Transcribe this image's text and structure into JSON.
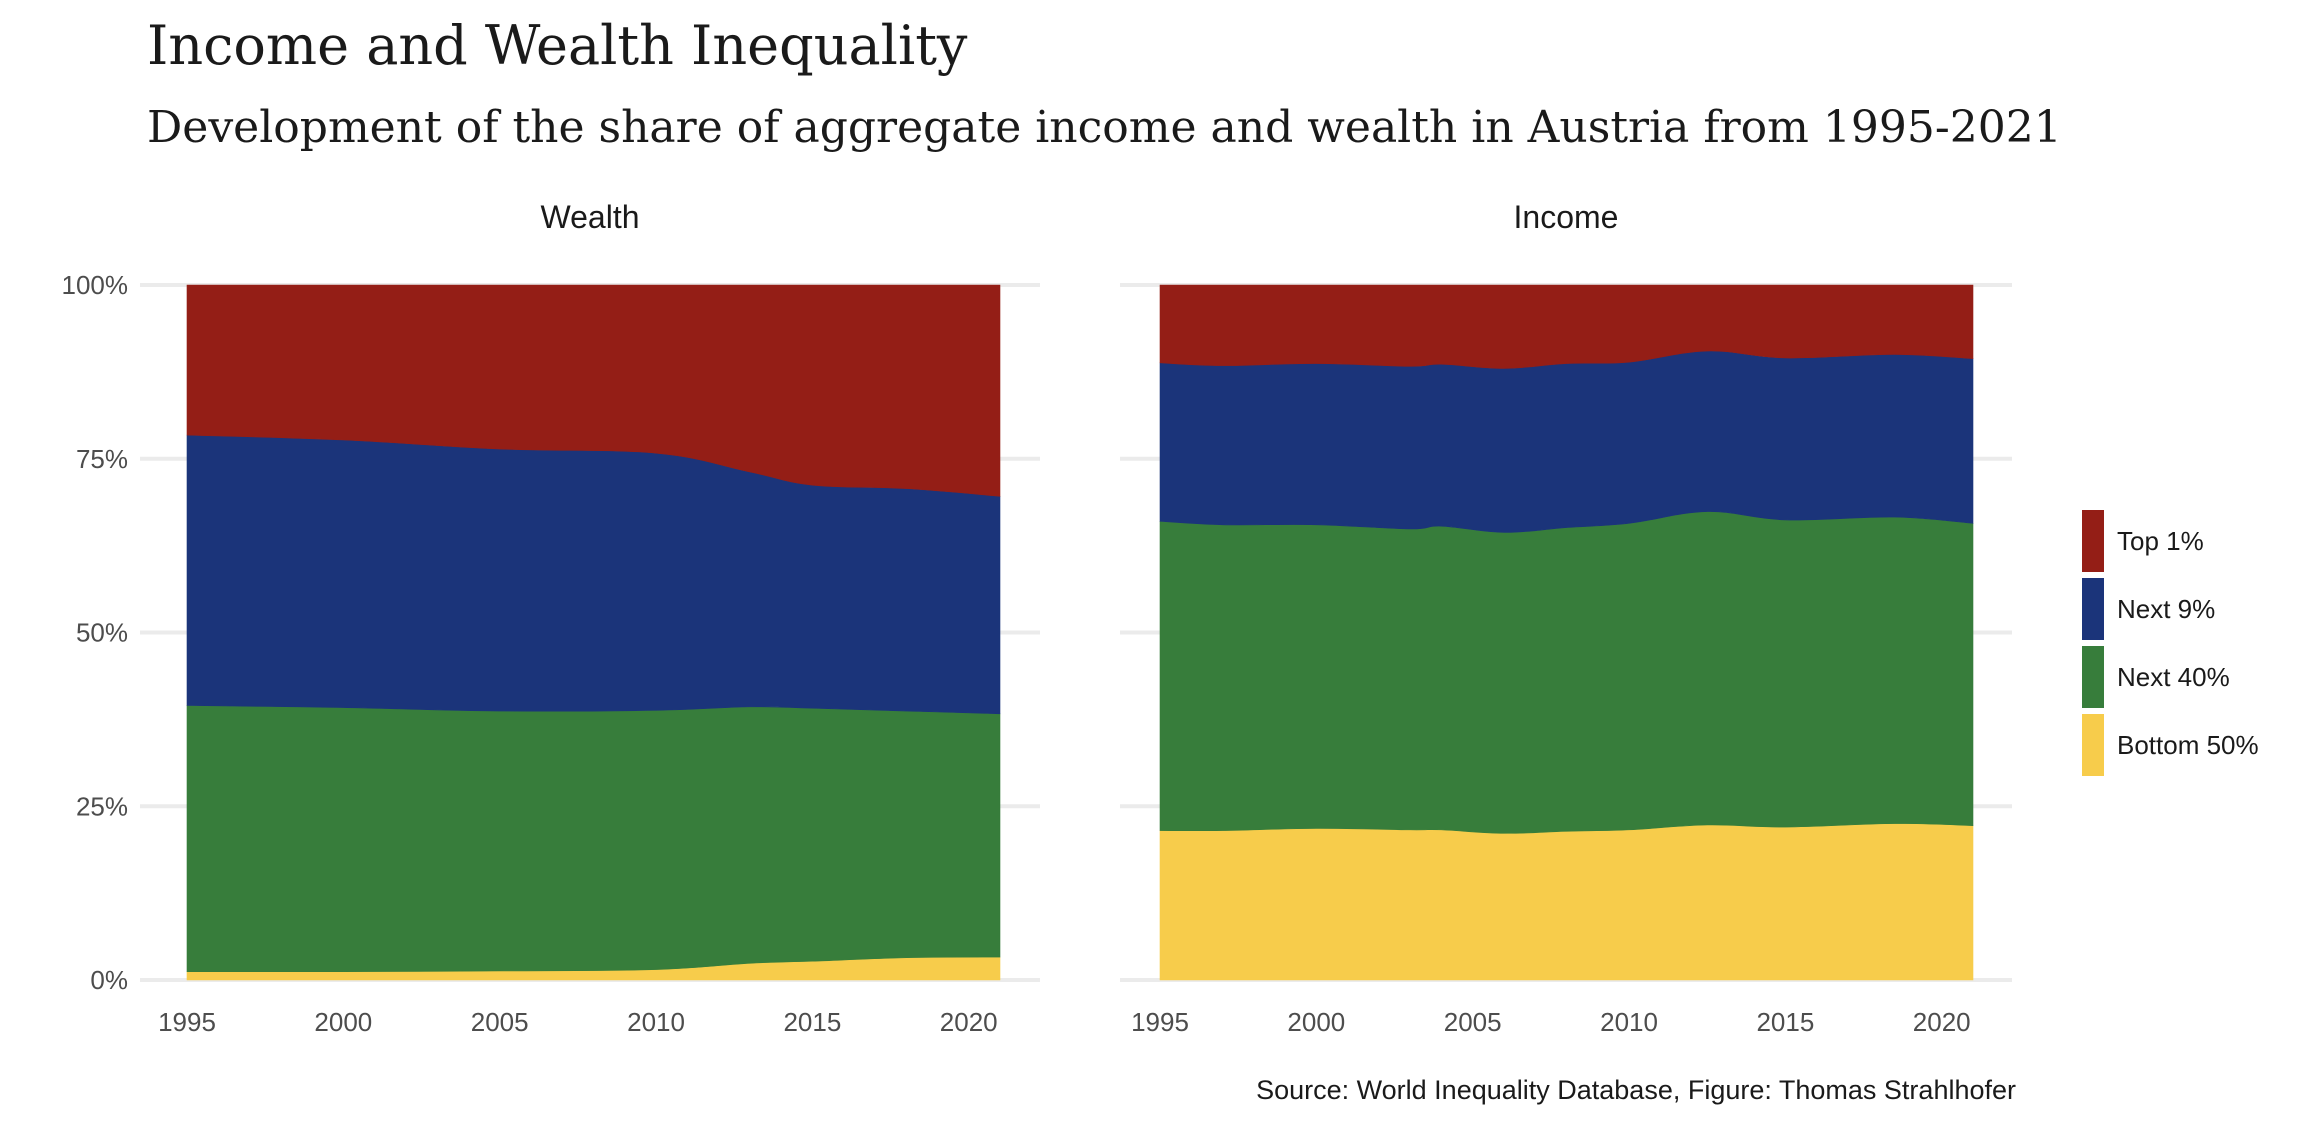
{
  "title": "Income and Wealth Inequality",
  "subtitle": "Development of the share of aggregate income and wealth in Austria from 1995-2021",
  "caption": "Source: World Inequality Database, Figure: Thomas Strahlhofer",
  "colors": {
    "Top 1%": "#941e16",
    "Next 9%": "#1b347a",
    "Next 40%": "#377d3b",
    "Bottom 50%": "#f7cc4b",
    "grid": "#ebebeb"
  },
  "chart_data": {
    "type": "area",
    "stacked": true,
    "x_range": [
      1995,
      2021
    ],
    "x_ticks": [
      "1995",
      "2000",
      "2005",
      "2010",
      "2015",
      "2020"
    ],
    "y_ticks": [
      "0%",
      "25%",
      "50%",
      "75%",
      "100%"
    ],
    "ylim": [
      0,
      100
    ],
    "legend": {
      "position": "right",
      "entries": [
        "Top 1%",
        "Next 9%",
        "Next 40%",
        "Bottom 50%"
      ]
    },
    "panels": [
      {
        "title": "Wealth",
        "x": [
          1995,
          2000,
          2005,
          2010,
          2013,
          2015,
          2018,
          2021
        ],
        "series": [
          {
            "name": "Bottom 50%",
            "values": [
              1.2,
              1.2,
              1.3,
              1.5,
              2.4,
              2.7,
              3.2,
              3.3
            ]
          },
          {
            "name": "Next 40%",
            "values": [
              38.3,
              38.0,
              37.4,
              37.3,
              36.9,
              36.4,
              35.5,
              35.0
            ]
          },
          {
            "name": "Next 9%",
            "values": [
              38.9,
              38.5,
              37.7,
              37.0,
              33.8,
              32.1,
              32.0,
              31.3
            ]
          },
          {
            "name": "Top 1%",
            "values": [
              21.6,
              22.3,
              23.6,
              24.2,
              26.9,
              28.8,
              29.3,
              30.4
            ]
          }
        ]
      },
      {
        "title": "Income",
        "x": [
          1995,
          1997,
          2000,
          2003,
          2004,
          2006,
          2008,
          2010,
          2012.5,
          2015,
          2018.5,
          2021
        ],
        "series": [
          {
            "name": "Bottom 50%",
            "values": [
              21.5,
              21.5,
              21.8,
              21.6,
              21.6,
              21.1,
              21.4,
              21.6,
              22.3,
              22.0,
              22.5,
              22.2
            ]
          },
          {
            "name": "Next 40%",
            "values": [
              44.5,
              44.0,
              43.7,
              43.3,
              43.7,
              43.3,
              43.7,
              44.1,
              45.1,
              44.2,
              44.1,
              43.5
            ]
          },
          {
            "name": "Next 9%",
            "values": [
              22.8,
              22.9,
              23.2,
              23.4,
              23.3,
              23.6,
              23.6,
              23.2,
              23.1,
              23.3,
              23.4,
              23.7
            ]
          },
          {
            "name": "Top 1%",
            "values": [
              11.2,
              11.6,
              11.3,
              11.7,
              11.4,
              12.0,
              11.3,
              11.1,
              9.5,
              10.5,
              10.0,
              10.6
            ]
          }
        ]
      }
    ]
  }
}
